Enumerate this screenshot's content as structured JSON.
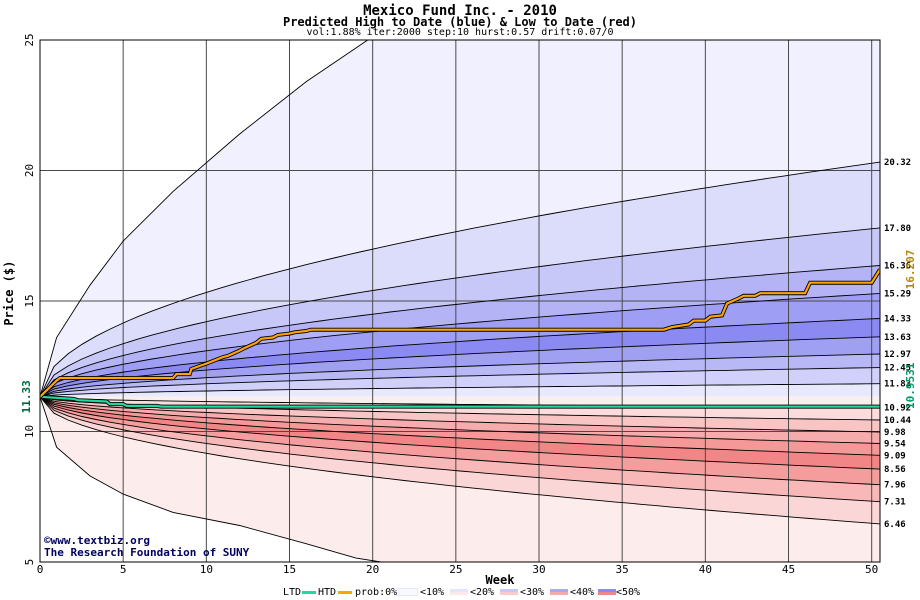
{
  "chart_data": {
    "type": "area",
    "title": "Mexico Fund Inc. - 2010",
    "subtitle": "Predicted High to Date (blue) &  Low to Date (red)",
    "params": "vol:1.88% iter:2000 step:10 hurst:0.57 drift:0.07/0",
    "xlabel": "Week",
    "ylabel": "Price ($)",
    "xlim": [
      0,
      50.5
    ],
    "ylim": [
      5,
      25
    ],
    "x_ticks": [
      0,
      5,
      10,
      15,
      20,
      25,
      30,
      35,
      40,
      45,
      50
    ],
    "y_ticks": [
      5,
      10,
      15,
      20,
      25
    ],
    "grid": true,
    "start_price": 11.33,
    "start_label": "11.33",
    "high_bands": [
      20.32,
      17.8,
      16.36,
      15.29,
      14.33,
      13.63,
      12.97,
      12.45,
      11.83
    ],
    "low_bands": [
      10.92,
      10.44,
      9.98,
      9.54,
      9.09,
      8.56,
      7.96,
      7.31,
      6.46
    ],
    "band_labels": [
      "20.32",
      "17.80",
      "16.36",
      "15.29",
      "14.33",
      "13.63",
      "12.97",
      "12.45",
      "11.83",
      "10.92",
      "10.44",
      "9.98",
      "9.54",
      "9.09",
      "8.56",
      "7.96",
      "7.31",
      "6.46"
    ],
    "outer_high": {
      "x": [
        0,
        1,
        3,
        5,
        8,
        12,
        16,
        19.7
      ],
      "y": [
        11.33,
        13.6,
        15.6,
        17.3,
        19.2,
        21.4,
        23.4,
        25
      ]
    },
    "outer_low": {
      "x": [
        0,
        1,
        3,
        5,
        8,
        12,
        16,
        19,
        20.5
      ],
      "y": [
        11.33,
        9.4,
        8.3,
        7.6,
        6.9,
        6.4,
        5.7,
        5.15,
        5.0
      ]
    },
    "series": [
      {
        "name": "HTD",
        "x": [
          0,
          1,
          1.2,
          8,
          8.2,
          9,
          9.1,
          10,
          10.2,
          11,
          11.3,
          12,
          12.3,
          13,
          13.3,
          14,
          14.3,
          15,
          15.3,
          16,
          16.3,
          37.5,
          38,
          39,
          39.3,
          40,
          40.3,
          41,
          41.3,
          42,
          42.3,
          43,
          43.3,
          46,
          46.3,
          50,
          50.5
        ],
        "y": [
          11.33,
          11.95,
          12.05,
          12.05,
          12.2,
          12.2,
          12.4,
          12.6,
          12.65,
          12.85,
          12.9,
          13.1,
          13.2,
          13.4,
          13.55,
          13.6,
          13.7,
          13.75,
          13.8,
          13.85,
          13.9,
          13.9,
          14.0,
          14.1,
          14.25,
          14.25,
          14.4,
          14.45,
          14.9,
          15.1,
          15.2,
          15.2,
          15.3,
          15.3,
          15.7,
          15.7,
          16.207
        ]
      },
      {
        "name": "LTD",
        "x": [
          0,
          2,
          2.3,
          4,
          4.2,
          5,
          5.2,
          7,
          7.3,
          50.5
        ],
        "y": [
          11.33,
          11.25,
          11.2,
          11.15,
          11.05,
          11.05,
          10.98,
          10.98,
          10.955,
          10.9531
        ]
      }
    ],
    "final_high_label": "16.207",
    "final_low_label": "10.9531",
    "colors": {
      "high_bands": [
        "#f0f0fe",
        "#dcdcfb",
        "#c8c8f8",
        "#b3b3f5",
        "#9e9ef4",
        "#8a8af2",
        "#a0a0f3",
        "#b8b8f6",
        "#d0d0fa",
        "#e9e9fd"
      ],
      "low_bands": [
        "#fbefee",
        "#fbdcdc",
        "#f9c4c4",
        "#f6acac",
        "#f49898",
        "#f28585",
        "#f59d9d",
        "#f8b8b8",
        "#fbd6d6",
        "#fdecec"
      ],
      "htd": "#ffa500",
      "ltd": "#20d8a0"
    }
  },
  "credits": {
    "line1": "©www.textbiz.org",
    "line2": "The Research Foundation of SUNY"
  },
  "legend": {
    "ltd": "LTD",
    "htd": "HTD",
    "prob": "prob:0%",
    "b10": "<10%",
    "b20": "<20%",
    "b30": "<30%",
    "b40": "<40%",
    "b50": "<50%"
  }
}
